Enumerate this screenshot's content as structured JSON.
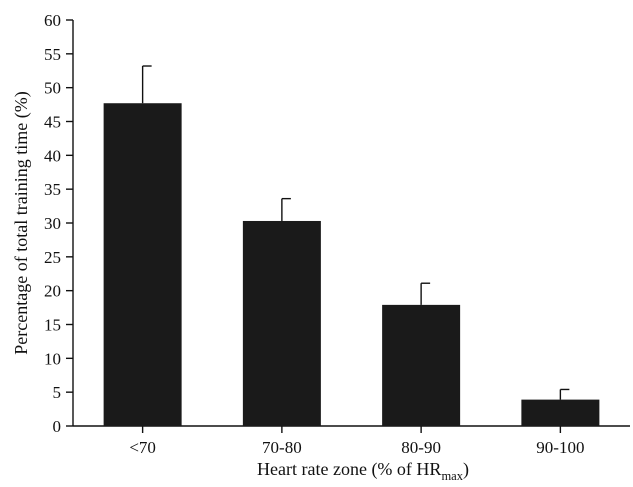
{
  "chart_data": {
    "type": "bar",
    "title": "",
    "xlabel": "Heart rate zone (% of HR",
    "xlabel_subscript": "max",
    "xlabel_suffix": ")",
    "ylabel": "Percentage of total training time (%)",
    "categories": [
      "<70",
      "70-80",
      "80-90",
      "90-100"
    ],
    "values": [
      47.7,
      30.3,
      17.9,
      3.9
    ],
    "error_upper": [
      5.5,
      3.3,
      3.2,
      1.5
    ],
    "ylim": [
      0,
      60
    ],
    "yticks": [
      "0",
      "5",
      "10",
      "15",
      "20",
      "25",
      "30",
      "35",
      "40",
      "45",
      "50",
      "55",
      "60"
    ],
    "grid": false,
    "legend": "none",
    "bar_color": "#1a1a1a"
  }
}
